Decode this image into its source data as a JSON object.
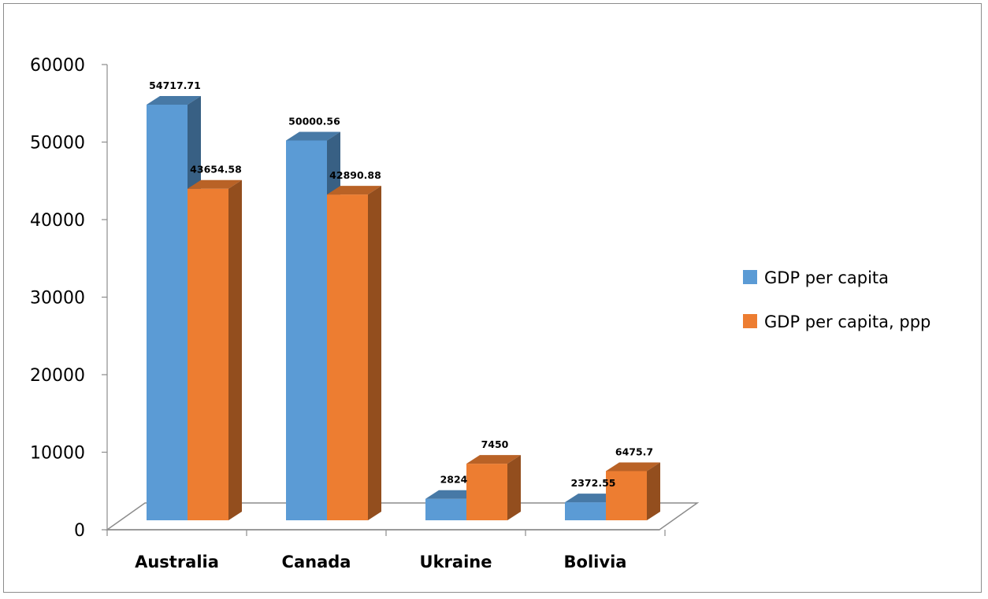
{
  "chart_data": {
    "type": "bar",
    "title": "",
    "xlabel": "",
    "ylabel": "",
    "categories": [
      "Australia",
      "Canada",
      "Ukraine",
      "Bolivia"
    ],
    "series": [
      {
        "name": "GDP per capita",
        "values": [
          54717.71,
          50000.56,
          2824,
          2372.55
        ],
        "labels": [
          "54717.71",
          "50000.56",
          "2824",
          "2372.55"
        ],
        "color": "#5b9bd5"
      },
      {
        "name": "GDP per capita, ppp",
        "values": [
          43654.58,
          42890.88,
          7450,
          6475.7
        ],
        "labels": [
          "43654.58",
          "42890.88",
          "7450",
          "6475.7"
        ],
        "color": "#ed7d31"
      }
    ],
    "yticks": [
      "0",
      "10000",
      "20000",
      "30000",
      "40000",
      "50000",
      "60000"
    ],
    "ylim": [
      0,
      60000
    ],
    "grid": false,
    "legend": "right",
    "style": "3d-clustered-column"
  }
}
